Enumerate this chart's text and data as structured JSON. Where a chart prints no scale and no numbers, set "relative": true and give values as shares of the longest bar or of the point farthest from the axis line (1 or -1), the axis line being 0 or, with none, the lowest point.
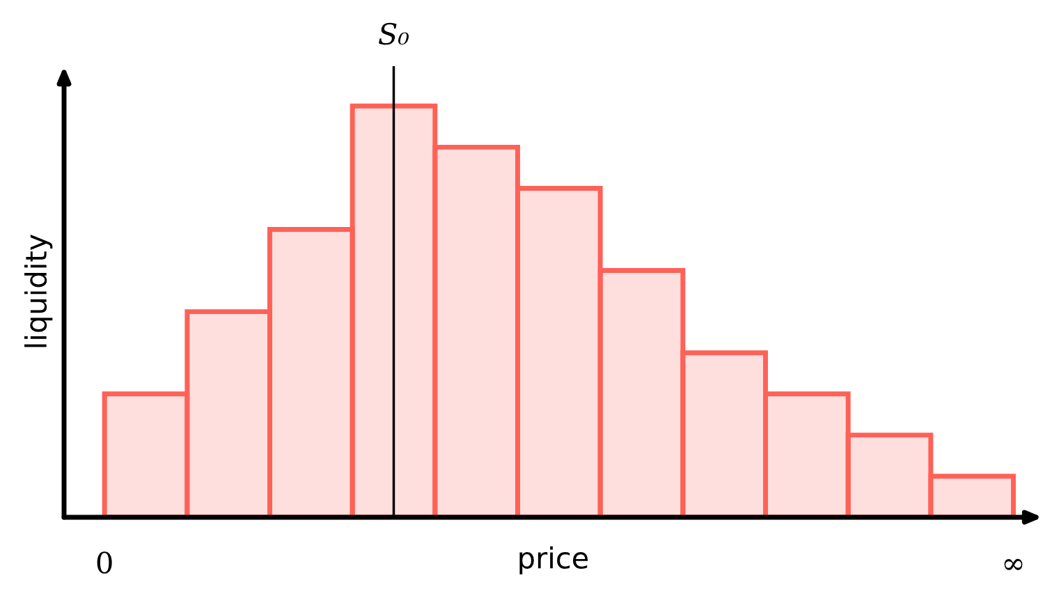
{
  "chart_data": {
    "type": "bar",
    "relative": true,
    "xlabel": "price",
    "ylabel": "liquidity",
    "categories": [
      null,
      null,
      null,
      null,
      null,
      null,
      null,
      null,
      null,
      null,
      null
    ],
    "series": [
      {
        "color": "#ff6157",
        "values": [
          0.3,
          0.5,
          0.7,
          1.0,
          0.9,
          0.8,
          0.6,
          0.4,
          0.3,
          0.2,
          0.1
        ]
      }
    ],
    "annotations": [
      "S₀",
      "0",
      "∞"
    ]
  }
}
